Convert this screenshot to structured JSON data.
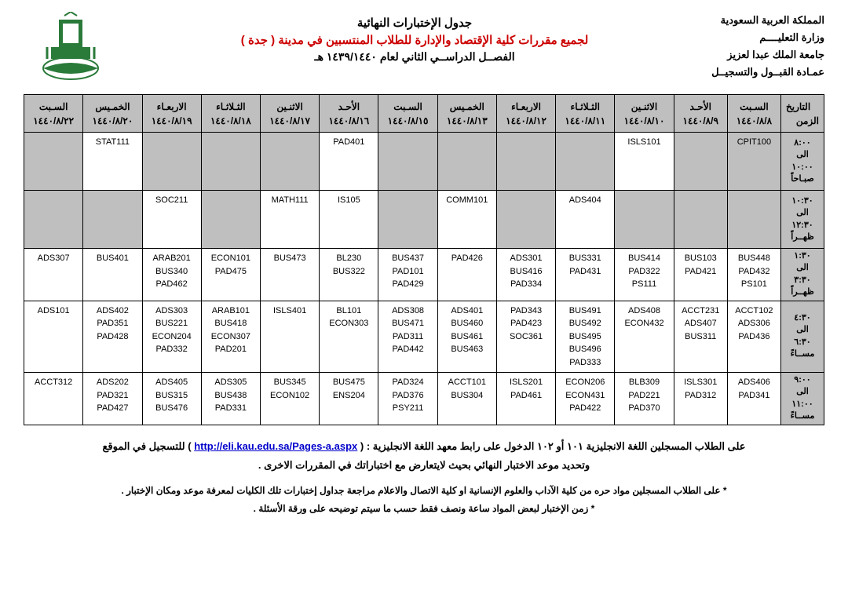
{
  "header": {
    "right_lines": [
      "المملكة العربية السعودية",
      "وزارة التعليــــم",
      "جامعة الملك عبدا لعزيز",
      "عمـادة القبــول والتسجيــل"
    ],
    "center_line1": "جدول الإختبارات النهائية",
    "center_line2": "لجميع مقررات كلية الإقتصاد والإدارة للطلاب المنتسبين في مدينة  (  جدة  )",
    "center_line3": "الفصــل الدراســي الثاني  لعام ١٤٣٩/١٤٤٠ هـ"
  },
  "corner": {
    "top": "التاريخ",
    "bottom": "الزمن"
  },
  "days": [
    "السـبت",
    "الأحـد",
    "الاثنـين",
    "الثـلاثـاء",
    "الاربعـاء",
    "الخمـيس",
    "السـبت",
    "الأحـد",
    "الاثنـين",
    "الثـلاثـاء",
    "الاربعـاء",
    "الخمـيس",
    "السـبت"
  ],
  "dates": [
    "١٤٤٠/٨/٨",
    "١٤٤٠/٨/٩",
    "١٤٤٠/٨/١٠",
    "١٤٤٠/٨/١١",
    "١٤٤٠/٨/١٢",
    "١٤٤٠/٨/١٣",
    "١٤٤٠/٨/١٥",
    "١٤٤٠/٨/١٦",
    "١٤٤٠/٨/١٧",
    "١٤٤٠/٨/١٨",
    "١٤٤٠/٨/١٩",
    "١٤٤٠/٨/٢٠",
    "١٤٤٠/٨/٢٢"
  ],
  "slots": [
    {
      "label": "٨:٠٠\nالى\n١٠:٠٠\nصبـاحاً",
      "cells": [
        {
          "bg": "gray",
          "v": [
            "CPIT100"
          ]
        },
        {
          "bg": "gray",
          "v": []
        },
        {
          "bg": "white",
          "v": [
            "ISLS101"
          ]
        },
        {
          "bg": "gray",
          "v": []
        },
        {
          "bg": "gray",
          "v": []
        },
        {
          "bg": "gray",
          "v": []
        },
        {
          "bg": "gray",
          "v": []
        },
        {
          "bg": "white",
          "v": [
            "PAD401"
          ]
        },
        {
          "bg": "gray",
          "v": []
        },
        {
          "bg": "gray",
          "v": []
        },
        {
          "bg": "gray",
          "v": []
        },
        {
          "bg": "white",
          "v": [
            "STAT111"
          ]
        },
        {
          "bg": "gray",
          "v": []
        }
      ]
    },
    {
      "label": "١٠:٣٠\nالى\n١٢:٣٠\nظهــراً",
      "cells": [
        {
          "bg": "gray",
          "v": []
        },
        {
          "bg": "gray",
          "v": []
        },
        {
          "bg": "gray",
          "v": []
        },
        {
          "bg": "white",
          "v": [
            "ADS404"
          ]
        },
        {
          "bg": "gray",
          "v": []
        },
        {
          "bg": "white",
          "v": [
            "COMM101"
          ]
        },
        {
          "bg": "gray",
          "v": []
        },
        {
          "bg": "white",
          "v": [
            "IS105"
          ]
        },
        {
          "bg": "white",
          "v": [
            "MATH111"
          ]
        },
        {
          "bg": "gray",
          "v": []
        },
        {
          "bg": "white",
          "v": [
            "SOC211"
          ]
        },
        {
          "bg": "gray",
          "v": []
        },
        {
          "bg": "gray",
          "v": []
        }
      ]
    },
    {
      "label": "١:٣٠\nالى\n٣:٣٠\nظهــراً",
      "cells": [
        {
          "bg": "white",
          "v": [
            "BUS448",
            "PAD432",
            "PS101"
          ]
        },
        {
          "bg": "white",
          "v": [
            "BUS103",
            "PAD421"
          ]
        },
        {
          "bg": "white",
          "v": [
            "BUS414",
            "PAD322",
            "PS111"
          ]
        },
        {
          "bg": "white",
          "v": [
            "BUS331",
            "PAD431"
          ]
        },
        {
          "bg": "white",
          "v": [
            "ADS301",
            "BUS416",
            "PAD334"
          ]
        },
        {
          "bg": "white",
          "v": [
            "PAD426"
          ]
        },
        {
          "bg": "white",
          "v": [
            "BUS437",
            "PAD101",
            "PAD429"
          ]
        },
        {
          "bg": "white",
          "v": [
            "BL230",
            "BUS322"
          ]
        },
        {
          "bg": "white",
          "v": [
            "BUS473"
          ]
        },
        {
          "bg": "white",
          "v": [
            "ECON101",
            "PAD475"
          ]
        },
        {
          "bg": "white",
          "v": [
            "ARAB201",
            "BUS340",
            "PAD462"
          ]
        },
        {
          "bg": "white",
          "v": [
            "BUS401"
          ]
        },
        {
          "bg": "white",
          "v": [
            "ADS307"
          ]
        }
      ]
    },
    {
      "label": "٤:٣٠\nالى\n٦:٣٠\nمســاءً",
      "cells": [
        {
          "bg": "white",
          "v": [
            "ACCT102",
            "ADS306",
            "PAD436"
          ]
        },
        {
          "bg": "white",
          "v": [
            "ACCT231",
            "ADS407",
            "BUS311"
          ]
        },
        {
          "bg": "white",
          "v": [
            "ADS408",
            "ECON432"
          ]
        },
        {
          "bg": "white",
          "v": [
            "BUS491",
            "BUS492",
            "BUS495",
            "BUS496",
            "PAD333"
          ]
        },
        {
          "bg": "white",
          "v": [
            "PAD343",
            "PAD423",
            "SOC361"
          ]
        },
        {
          "bg": "white",
          "v": [
            "ADS401",
            "BUS460",
            "BUS461",
            "BUS463"
          ]
        },
        {
          "bg": "white",
          "v": [
            "ADS308",
            "BUS471",
            "PAD311",
            "PAD442"
          ]
        },
        {
          "bg": "white",
          "v": [
            "BL101",
            "ECON303"
          ]
        },
        {
          "bg": "white",
          "v": [
            "ISLS401"
          ]
        },
        {
          "bg": "white",
          "v": [
            "ARAB101",
            "BUS418",
            "ECON307",
            "PAD201"
          ]
        },
        {
          "bg": "white",
          "v": [
            "ADS303",
            "BUS221",
            "ECON204",
            "PAD332"
          ]
        },
        {
          "bg": "white",
          "v": [
            "ADS402",
            "PAD351",
            "PAD428"
          ]
        },
        {
          "bg": "white",
          "v": [
            "ADS101"
          ]
        }
      ]
    },
    {
      "label": "٩:٠٠\nالى\n١١:٠٠\nمســاءً",
      "cells": [
        {
          "bg": "white",
          "v": [
            "ADS406",
            "PAD341"
          ]
        },
        {
          "bg": "white",
          "v": [
            "ISLS301",
            "PAD312"
          ]
        },
        {
          "bg": "white",
          "v": [
            "BLB309",
            "PAD221",
            "PAD370"
          ]
        },
        {
          "bg": "white",
          "v": [
            "ECON206",
            "ECON431",
            "PAD422"
          ]
        },
        {
          "bg": "white",
          "v": [
            "ISLS201",
            "PAD461"
          ]
        },
        {
          "bg": "white",
          "v": [
            "ACCT101",
            "BUS304"
          ]
        },
        {
          "bg": "white",
          "v": [
            "PAD324",
            "PAD376",
            "PSY211"
          ]
        },
        {
          "bg": "white",
          "v": [
            "BUS475",
            "ENS204"
          ]
        },
        {
          "bg": "white",
          "v": [
            "BUS345",
            "ECON102"
          ]
        },
        {
          "bg": "white",
          "v": [
            "ADS305",
            "BUS438",
            "PAD331"
          ]
        },
        {
          "bg": "white",
          "v": [
            "ADS405",
            "BUS315",
            "BUS476"
          ]
        },
        {
          "bg": "white",
          "v": [
            "ADS202",
            "PAD321",
            "PAD427"
          ]
        },
        {
          "bg": "white",
          "v": [
            "ACCT312"
          ]
        }
      ]
    }
  ],
  "footer": {
    "line1_pre": "على الطلاب المسجلين اللغة الانجليزية ١٠١ أو ١٠٢  الدخول على رابط معهد اللغة الانجليزية : ( ",
    "link": "http://eli.kau.edu.sa/Pages-a.aspx",
    "line1_post": " ) للتسجيل في الموقع",
    "line2": "وتحديد موعد الاختبار النهائي بحيث لايتعارض مع اختباراتك في المقررات الاخرى .",
    "note1": "*   على الطلاب المسجلين مواد حره من كلية الآداب والعلوم الإنسانية او كلية الاتصال والاعلام مراجعة جداول إختبارات تلك الكليات لمعرفة موعد ومكان الإختبار .",
    "note2": "*   زمن الإختبار لبعض المواد ساعة ونصف فقط حسب ما سيتم توضيحه على ورقة الأسئلة ."
  }
}
